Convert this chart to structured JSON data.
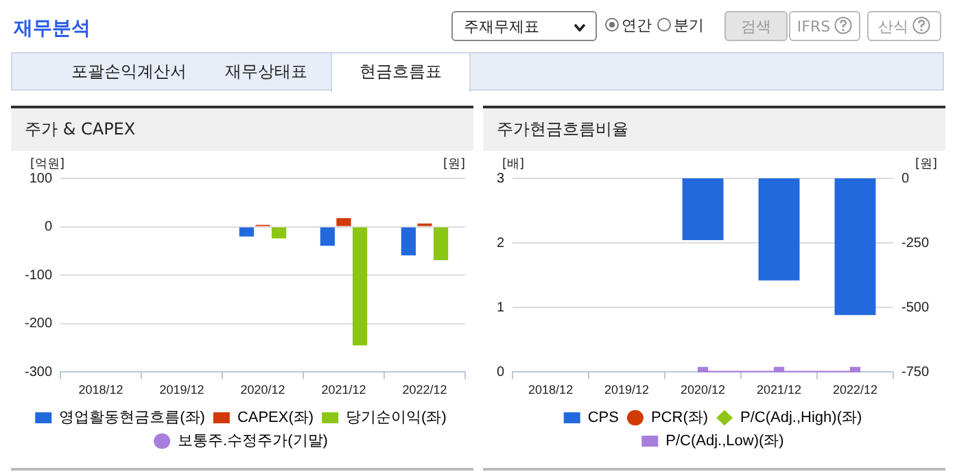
{
  "chart_data": [
    {
      "type": "bar",
      "title": "주가 & CAPEX",
      "ylabel": "[억원]",
      "y2label": "[원]",
      "annotations": [
        "재무분석",
        "주재무제표",
        "연간",
        "분기",
        "검색",
        "IFRS",
        "산식",
        "포괄손익계산서",
        "재무상태표",
        "현금흐름표"
      ],
      "categories": [
        "2018/12",
        "2019/12",
        "2020/12",
        "2021/12",
        "2022/12"
      ],
      "ylim": [
        -300,
        100
      ],
      "yticks": [
        -300,
        -200,
        -100,
        0,
        100
      ],
      "grid": "y",
      "legend": "bottom",
      "series": [
        {
          "name": "영업활동현금흐름(좌)",
          "color": "#2269dd",
          "values": [
            null,
            null,
            -20,
            -39,
            -59
          ]
        },
        {
          "name": "CAPEX(좌)",
          "color": "#d03a06",
          "values": [
            null,
            null,
            4,
            18,
            7
          ]
        },
        {
          "name": "당기순이익(좌)",
          "color": "#8cc514",
          "values": [
            null,
            null,
            -24,
            -245,
            -69
          ]
        },
        {
          "name": "보통주.수정주가(기말)",
          "type": "line",
          "axis": "y2",
          "marker": "circle",
          "color": "#a87ddc",
          "values": [
            null,
            null,
            null,
            null,
            null
          ]
        }
      ]
    },
    {
      "type": "bar",
      "title": "주가현금흐름비율",
      "ylabel": "[배]",
      "y2label": "[원]",
      "categories": [
        "2018/12",
        "2019/12",
        "2020/12",
        "2021/12",
        "2022/12"
      ],
      "ylim": [
        0,
        3
      ],
      "yticks": [
        0,
        1,
        2,
        3
      ],
      "y2lim": [
        -750,
        0
      ],
      "y2ticks": [
        -750,
        -500,
        -250,
        0
      ],
      "grid": "y",
      "legend": "bottom",
      "series": [
        {
          "name": "CPS",
          "color": "#2269dd",
          "axis": "y2",
          "values": [
            null,
            null,
            -239,
            -395,
            -529
          ]
        },
        {
          "name": "PCR(좌)",
          "type": "line",
          "marker": "circle",
          "color": "#d03a06",
          "values": [
            null,
            null,
            null,
            null,
            null
          ]
        },
        {
          "name": "P/C(Adj.,High)(좌)",
          "type": "line",
          "marker": "diamond",
          "color": "#8cc514",
          "values": [
            null,
            null,
            null,
            null,
            null
          ]
        },
        {
          "name": "P/C(Adj.,Low)(좌)",
          "type": "line",
          "marker": "square",
          "color": "#a87ddc",
          "values": [
            null,
            null,
            0,
            0,
            0
          ]
        }
      ]
    }
  ]
}
